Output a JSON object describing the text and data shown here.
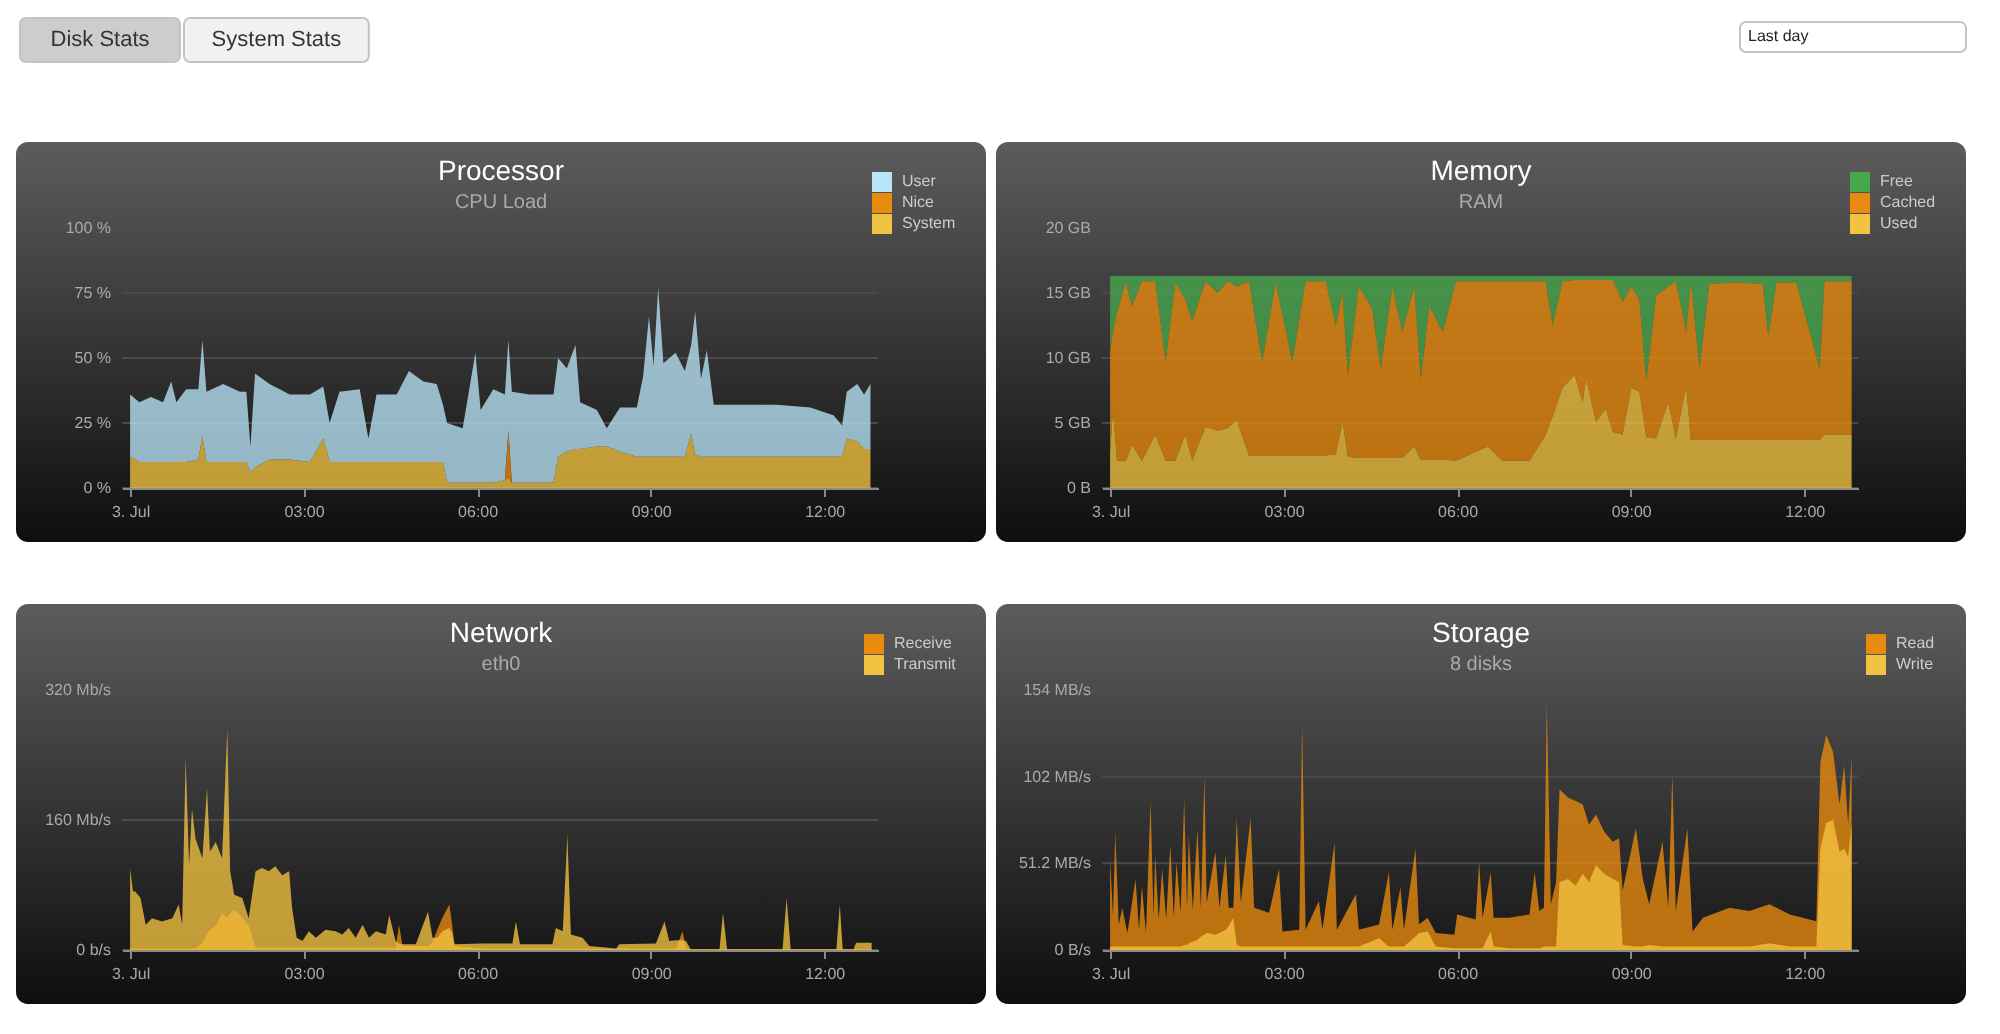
{
  "chart_data": [
    {
      "type": "other",
      "annotations": [
        "Disk Stats",
        "System Stats",
        "Last day"
      ]
    },
    {
      "type": "area",
      "title": "Processor",
      "subtitle": "CPU Load",
      "stacked": true,
      "legend": "top right",
      "grid": "y",
      "xlim": [
        -0.14,
        12.93
      ],
      "xticks": [
        {
          "value": 0,
          "label": "3. Jul"
        },
        {
          "value": 3,
          "label": "03:00"
        },
        {
          "value": 6,
          "label": "06:00"
        },
        {
          "value": 9,
          "label": "09:00"
        },
        {
          "value": 12,
          "label": "12:00"
        }
      ],
      "ylim": [
        0,
        100
      ],
      "yticks": [
        {
          "value": 0,
          "label": "0 %"
        },
        {
          "value": 25,
          "label": "25 %"
        },
        {
          "value": 50,
          "label": "50 %"
        },
        {
          "value": 75,
          "label": "75 %"
        },
        {
          "value": 100,
          "label": "100 %"
        }
      ],
      "x": [
        0,
        0.16,
        0.36,
        0.57,
        0.71,
        0.8,
        0.97,
        1.18,
        1.25,
        1.32,
        1.61,
        1.9,
        2.01,
        2.08,
        2.16,
        2.41,
        2.76,
        3.11,
        3.34,
        3.45,
        3.62,
        3.97,
        4.12,
        4.26,
        4.61,
        4.82,
        5.07,
        5.3,
        5.41,
        5.48,
        5.75,
        5.97,
        6.06,
        6.28,
        6.48,
        6.54,
        6.6,
        6.91,
        7.32,
        7.4,
        7.55,
        7.7,
        7.78,
        8.07,
        8.24,
        8.47,
        8.76,
        8.87,
        8.97,
        9.05,
        9.13,
        9.22,
        9.43,
        9.59,
        9.7,
        9.77,
        9.87,
        9.97,
        10.09,
        10.61,
        11.18,
        11.76,
        12.16,
        12.31,
        12.39,
        12.57,
        12.69,
        12.8
      ],
      "series": [
        {
          "name": "System",
          "color": "#f2c340",
          "values": [
            12,
            10,
            10,
            10,
            10,
            10,
            10,
            11,
            20,
            10,
            10,
            10,
            10,
            6,
            8,
            11,
            11,
            10,
            19,
            10,
            10,
            10,
            10,
            10,
            10,
            10,
            10,
            10,
            10,
            2,
            2,
            2,
            2,
            2,
            3,
            4,
            2,
            2,
            2,
            12,
            14,
            15,
            15,
            16,
            16,
            14,
            12,
            12,
            12,
            12,
            12,
            12,
            12,
            12,
            21,
            13,
            12,
            12,
            12,
            12,
            12,
            12,
            12,
            12,
            19,
            18,
            15,
            15
          ]
        },
        {
          "name": "Nice",
          "color": "#e98b0e",
          "values": [
            0,
            0,
            0,
            0,
            0,
            0,
            0,
            0,
            0,
            0,
            0,
            0,
            0,
            0,
            0,
            0,
            0,
            0,
            0,
            0,
            0,
            0,
            0,
            0,
            0,
            0,
            0,
            0,
            0,
            0,
            0,
            0,
            0,
            0,
            0,
            18,
            0,
            0,
            0,
            0,
            0,
            0,
            0,
            0,
            0,
            0,
            0,
            0,
            0,
            0,
            0,
            0,
            0,
            0,
            0,
            0,
            0,
            0,
            0,
            0,
            0,
            0,
            0,
            0,
            0,
            0,
            0,
            0
          ]
        },
        {
          "name": "User",
          "color": "#b9e4f6",
          "values": [
            24,
            23,
            25,
            23,
            31,
            23,
            28,
            27,
            37,
            27,
            30,
            27,
            27,
            10,
            36,
            29,
            25,
            26,
            20,
            15,
            27,
            28,
            9,
            26,
            26,
            35,
            31,
            30,
            22,
            23,
            21,
            50,
            28,
            36,
            33,
            35,
            35,
            34,
            34,
            38,
            32,
            40,
            18,
            14,
            7,
            17,
            19,
            31,
            54,
            35,
            65,
            36,
            40,
            33,
            34,
            55,
            30,
            41,
            20,
            20,
            20,
            19,
            16,
            12,
            18,
            22,
            21,
            25
          ]
        }
      ]
    },
    {
      "type": "area",
      "title": "Memory",
      "subtitle": "RAM",
      "stacked": true,
      "legend": "top right",
      "grid": "y",
      "xlim": [
        -0.14,
        12.93
      ],
      "xticks": [
        {
          "value": 0,
          "label": "3. Jul"
        },
        {
          "value": 3,
          "label": "03:00"
        },
        {
          "value": 6,
          "label": "06:00"
        },
        {
          "value": 9,
          "label": "09:00"
        },
        {
          "value": 12,
          "label": "12:00"
        }
      ],
      "ylim": [
        0,
        20
      ],
      "yticks": [
        {
          "value": 0,
          "label": "0 B"
        },
        {
          "value": 5,
          "label": "5 GB"
        },
        {
          "value": 10,
          "label": "10 GB"
        },
        {
          "value": 15,
          "label": "15 GB"
        },
        {
          "value": 20,
          "label": "20 GB"
        }
      ],
      "x": [
        0,
        0.05,
        0.12,
        0.27,
        0.38,
        0.55,
        0.78,
        0.96,
        1.13,
        1.3,
        1.42,
        1.65,
        1.86,
        2.03,
        2.19,
        2.4,
        2.63,
        2.86,
        3.06,
        3.15,
        3.38,
        3.73,
        3.9,
        4.02,
        4.11,
        4.3,
        4.53,
        4.68,
        4.88,
        5.05,
        5.26,
        5.37,
        5.52,
        5.75,
        5.98,
        6.53,
        6.78,
        7.25,
        7.53,
        7.65,
        7.82,
        8.03,
        8.17,
        8.23,
        8.4,
        8.57,
        8.69,
        8.86,
        9.01,
        9.15,
        9.27,
        9.44,
        9.65,
        9.78,
        9.96,
        10.04,
        10.19,
        10.36,
        10.82,
        11.28,
        11.38,
        11.52,
        11.86,
        12.27,
        12.35,
        12.82
      ],
      "series": [
        {
          "name": "Used",
          "color": "#f2c340",
          "values": [
            2.8,
            5.9,
            2.1,
            2.1,
            3.3,
            2.1,
            4.1,
            2.1,
            2.1,
            4.1,
            2.1,
            4.7,
            4.4,
            4.6,
            5.2,
            2.5,
            2.5,
            2.5,
            2.5,
            2.5,
            2.5,
            2.5,
            2.6,
            5.1,
            2.4,
            2.3,
            2.3,
            2.3,
            2.3,
            2.3,
            3.2,
            2.2,
            2.2,
            2.2,
            2.1,
            3.2,
            2.1,
            2.1,
            4.1,
            5.5,
            7.7,
            8.7,
            6.6,
            8.4,
            5.1,
            6.1,
            4.3,
            4.1,
            7.7,
            7.4,
            3.9,
            3.8,
            6.6,
            3.8,
            7.8,
            3.7,
            3.7,
            3.7,
            3.7,
            3.7,
            3.7,
            3.7,
            3.7,
            3.7,
            4.1,
            4.1
          ]
        },
        {
          "name": "Cached",
          "color": "#e98b0e",
          "values": [
            7.7,
            6.1,
            11.4,
            13.7,
            10.7,
            13.8,
            11.8,
            7.6,
            13.7,
            10.4,
            10.7,
            11.2,
            10.6,
            11.3,
            10.3,
            13.4,
            7.2,
            13.3,
            9.2,
            7.2,
            13.4,
            13.4,
            9.9,
            9.9,
            6.3,
            13.2,
            11.5,
            6.9,
            13.2,
            9.7,
            12.3,
            6.2,
            11.8,
            9.8,
            13.8,
            12.7,
            13.8,
            13.8,
            11.8,
            7.0,
            8.2,
            7.3,
            9.4,
            7.6,
            10.9,
            9.9,
            11.7,
            10.2,
            7.8,
            7.1,
            4.3,
            11.0,
            8.9,
            12.1,
            4.2,
            12.2,
            5.5,
            12.0,
            12.1,
            12.0,
            8.0,
            12.1,
            12.1,
            5.5,
            11.8,
            11.8
          ]
        },
        {
          "name": "Free",
          "color": "#47a84b",
          "values": [
            5.8,
            4.3,
            2.8,
            0.5,
            2.3,
            0.4,
            0.4,
            6.6,
            0.5,
            1.8,
            3.5,
            0.4,
            1.3,
            0.4,
            0.8,
            0.4,
            6.6,
            0.5,
            4.6,
            6.6,
            0.4,
            0.4,
            3.8,
            1.3,
            7.6,
            0.8,
            2.5,
            7.1,
            0.8,
            4.3,
            0.8,
            7.9,
            2.3,
            4.3,
            0.4,
            0.4,
            0.4,
            0.4,
            0.4,
            3.8,
            0.4,
            0.3,
            0.3,
            0.3,
            0.3,
            0.3,
            0.3,
            2.0,
            0.8,
            1.8,
            8.1,
            1.5,
            0.8,
            0.4,
            4.3,
            0.4,
            7.1,
            0.6,
            0.5,
            0.6,
            4.6,
            0.5,
            0.5,
            7.1,
            0.4,
            0.4
          ]
        }
      ]
    },
    {
      "type": "area",
      "title": "Network",
      "subtitle": "eth0",
      "legend": "top right",
      "grid": "y",
      "xlim": [
        -0.14,
        12.93
      ],
      "xticks": [
        {
          "value": 0,
          "label": "3. Jul"
        },
        {
          "value": 3,
          "label": "03:00"
        },
        {
          "value": 6,
          "label": "06:00"
        },
        {
          "value": 9,
          "label": "09:00"
        },
        {
          "value": 12,
          "label": "12:00"
        }
      ],
      "ylim": [
        0,
        320
      ],
      "yticks": [
        {
          "value": 0,
          "label": "0 b/s"
        },
        {
          "value": 160,
          "label": "160 Mb/s"
        },
        {
          "value": 320,
          "label": "320 Mb/s"
        }
      ],
      "x": [
        0,
        0.05,
        0.09,
        0.18,
        0.27,
        0.38,
        0.55,
        0.73,
        0.84,
        0.9,
        0.96,
        1.02,
        1.07,
        1.13,
        1.25,
        1.33,
        1.38,
        1.48,
        1.59,
        1.68,
        1.73,
        1.8,
        1.94,
        2.05,
        2.17,
        2.28,
        2.4,
        2.51,
        2.63,
        2.75,
        2.8,
        2.88,
        2.98,
        3.09,
        3.21,
        3.38,
        3.55,
        3.67,
        3.78,
        3.9,
        4.02,
        4.13,
        4.25,
        4.42,
        4.48,
        4.59,
        4.65,
        4.71,
        4.94,
        5.15,
        5.23,
        5.31,
        5.4,
        5.52,
        5.57,
        5.61,
        6.09,
        6.61,
        6.67,
        6.74,
        7.3,
        7.36,
        7.48,
        7.56,
        7.62,
        7.82,
        7.94,
        8.4,
        8.46,
        9.09,
        9.24,
        9.32,
        9.44,
        9.55,
        9.61,
        9.69,
        10.19,
        10.25,
        10.32,
        11.28,
        11.35,
        11.42,
        12.21,
        12.27,
        12.32,
        12.51,
        12.55,
        12.82
      ],
      "series": [
        {
          "name": "Receive",
          "color": "#e98b0e",
          "values": [
            2,
            2,
            2,
            2,
            2,
            2,
            2,
            2,
            2,
            2,
            2,
            2,
            2,
            2,
            8,
            20,
            25,
            30,
            45,
            40,
            45,
            50,
            40,
            30,
            3,
            3,
            3,
            3,
            3,
            3,
            3,
            3,
            3,
            3,
            3,
            3,
            3,
            3,
            3,
            3,
            3,
            3,
            3,
            3,
            3,
            3,
            31,
            5,
            5,
            5,
            10,
            25,
            40,
            56,
            30,
            5,
            2,
            2,
            2,
            2,
            2,
            2,
            2,
            2,
            2,
            2,
            2,
            1,
            2,
            2,
            2,
            2,
            2,
            23,
            2,
            1,
            1,
            1,
            1,
            1,
            1,
            1,
            1,
            1,
            1,
            1,
            1,
            1
          ]
        },
        {
          "name": "Transmit",
          "color": "#f2c340",
          "values": [
            100,
            72,
            72,
            64,
            31,
            39,
            35,
            39,
            56,
            31,
            236,
            105,
            174,
            137,
            113,
            199,
            121,
            133,
            113,
            272,
            97,
            68,
            64,
            39,
            97,
            101,
            97,
            103,
            92,
            97,
            52,
            15,
            11,
            23,
            15,
            25,
            23,
            19,
            27,
            15,
            31,
            15,
            23,
            19,
            43,
            11,
            8,
            7,
            7,
            47,
            15,
            15,
            23,
            27,
            20,
            7,
            8,
            8,
            35,
            7,
            7,
            27,
            23,
            142,
            19,
            15,
            5,
            2,
            7,
            8,
            35,
            11,
            12,
            12,
            11,
            1,
            1,
            46,
            1,
            1,
            64,
            1,
            1,
            56,
            1,
            1,
            9,
            9
          ]
        }
      ]
    },
    {
      "type": "area",
      "title": "Storage",
      "subtitle": "8 disks",
      "legend": "top right",
      "grid": "y",
      "xlim": [
        -0.14,
        12.93
      ],
      "xticks": [
        {
          "value": 0,
          "label": "3. Jul"
        },
        {
          "value": 3,
          "label": "03:00"
        },
        {
          "value": 6,
          "label": "06:00"
        },
        {
          "value": 9,
          "label": "09:00"
        },
        {
          "value": 12,
          "label": "12:00"
        }
      ],
      "ylim": [
        0,
        153.6
      ],
      "yticks": [
        {
          "value": 0,
          "label": "0 B/s"
        },
        {
          "value": 51.2,
          "label": "51.2 MB/s"
        },
        {
          "value": 102.4,
          "label": "102 MB/s"
        },
        {
          "value": 153.6,
          "label": "154 MB/s"
        }
      ],
      "x": [
        0,
        0.05,
        0.09,
        0.15,
        0.21,
        0.3,
        0.44,
        0.5,
        0.55,
        0.62,
        0.7,
        0.75,
        0.78,
        0.84,
        0.9,
        0.97,
        1.04,
        1.1,
        1.15,
        1.22,
        1.28,
        1.33,
        1.36,
        1.43,
        1.51,
        1.57,
        1.63,
        1.67,
        1.82,
        1.89,
        2.0,
        2.05,
        2.13,
        2.19,
        2.26,
        2.43,
        2.49,
        2.75,
        2.92,
        2.98,
        3.27,
        3.32,
        3.38,
        3.61,
        3.67,
        3.88,
        3.92,
        4.25,
        4.3,
        4.65,
        4.82,
        4.88,
        5.02,
        5.08,
        5.28,
        5.34,
        5.49,
        5.63,
        5.95,
        6.0,
        6.32,
        6.38,
        6.44,
        6.58,
        6.63,
        6.9,
        7.25,
        7.34,
        7.42,
        7.5,
        7.55,
        7.62,
        7.71,
        7.77,
        7.92,
        8.05,
        8.17,
        8.28,
        8.4,
        8.54,
        8.69,
        8.8,
        8.86,
        9.09,
        9.21,
        9.32,
        9.55,
        9.65,
        9.72,
        9.78,
        9.98,
        10.07,
        10.25,
        10.71,
        11.05,
        11.4,
        11.75,
        12.21,
        12.28,
        12.38,
        12.5,
        12.61,
        12.69,
        12.76,
        12.82
      ],
      "series": [
        {
          "name": "Read",
          "color": "#e98b0e",
          "values": [
            54,
            20,
            70,
            15,
            25,
            10,
            42,
            12,
            38,
            10,
            88,
            20,
            56,
            18,
            48,
            18,
            62,
            20,
            52,
            22,
            90,
            25,
            68,
            24,
            72,
            25,
            103,
            28,
            58,
            25,
            56,
            25,
            25,
            78,
            28,
            78,
            25,
            22,
            48,
            11,
            12,
            134,
            12,
            29,
            12,
            63,
            12,
            33,
            12,
            15,
            46,
            12,
            37,
            12,
            60,
            15,
            19,
            10,
            9,
            21,
            18,
            52,
            19,
            46,
            19,
            19,
            21,
            46,
            23,
            25,
            146,
            27,
            40,
            95,
            90,
            88,
            86,
            74,
            80,
            70,
            64,
            66,
            35,
            72,
            42,
            27,
            64,
            25,
            104,
            23,
            72,
            11,
            19,
            25,
            23,
            27,
            21,
            17,
            111,
            127,
            117,
            86,
            109,
            74,
            115
          ]
        },
        {
          "name": "Write",
          "color": "#f2c340",
          "values": [
            2,
            2,
            2,
            2,
            2,
            2,
            2,
            2,
            2,
            2,
            2,
            2,
            2,
            2,
            2,
            2,
            2,
            2,
            2,
            2,
            3,
            3,
            4,
            5,
            6,
            8,
            9,
            10,
            9,
            10,
            12,
            14,
            19,
            3,
            2,
            2,
            2,
            2,
            2,
            2,
            2,
            2,
            2,
            2,
            2,
            2,
            2,
            2,
            2,
            7,
            2,
            2,
            2,
            2,
            8,
            10,
            11,
            2,
            1,
            1,
            1,
            1,
            1,
            11,
            2,
            1,
            1,
            1,
            1,
            2,
            2,
            2,
            2,
            40,
            42,
            38,
            45,
            40,
            50,
            45,
            42,
            40,
            3,
            2,
            2,
            3,
            2,
            2,
            2,
            2,
            2,
            2,
            2,
            2,
            2,
            4,
            2,
            2,
            60,
            75,
            77,
            58,
            60,
            55,
            74
          ]
        }
      ]
    }
  ]
}
